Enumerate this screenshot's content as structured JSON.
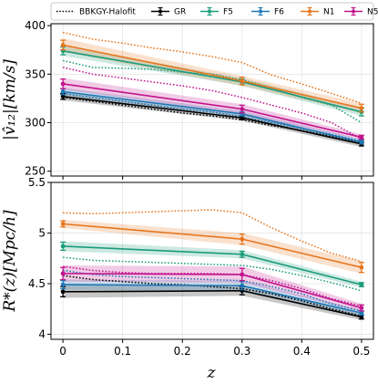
{
  "legend": [
    {
      "key": "bbkgy",
      "label": "BBKGY-Halofit",
      "style": "dotted",
      "color": "#000000"
    },
    {
      "key": "GR",
      "label": "GR",
      "style": "errorbar",
      "color": "#000000"
    },
    {
      "key": "F5",
      "label": "F5",
      "style": "errorbar",
      "color": "#1a9c7a"
    },
    {
      "key": "F6",
      "label": "F6",
      "style": "errorbar",
      "color": "#1f77b4"
    },
    {
      "key": "N1",
      "label": "N1",
      "style": "errorbar",
      "color": "#e6761e"
    },
    {
      "key": "N5",
      "label": "N5",
      "style": "errorbar",
      "color": "#c0148c"
    }
  ],
  "xlabel": "z",
  "chart_data": [
    {
      "type": "line",
      "panel": "top",
      "ylabel": "|v̂₁₂|[km/s]",
      "xlim": [
        -0.02,
        0.52
      ],
      "ylim": [
        245,
        402
      ],
      "x_ticks": [
        "0",
        "0.1",
        "0.2",
        "0.3",
        "0.4",
        "0.5"
      ],
      "y_ticks": [
        250,
        300,
        350,
        400
      ],
      "grid": true,
      "series": [
        {
          "name": "GR",
          "color": "#000000",
          "x": [
            0,
            0.3,
            0.5
          ],
          "y": [
            327,
            305,
            278
          ],
          "err": [
            3,
            2,
            2
          ],
          "band": [
            4,
            3,
            3
          ]
        },
        {
          "name": "F5",
          "color": "#1a9c7a",
          "x": [
            0,
            0.3,
            0.5
          ],
          "y": [
            374,
            342,
            311
          ],
          "err": [
            4,
            3,
            4
          ],
          "band": [
            5,
            4,
            4
          ]
        },
        {
          "name": "F6",
          "color": "#1f77b4",
          "x": [
            0,
            0.3,
            0.5
          ],
          "y": [
            332,
            309,
            280
          ],
          "err": [
            3,
            2,
            2
          ],
          "band": [
            4,
            3,
            3
          ]
        },
        {
          "name": "N1",
          "color": "#e6761e",
          "x": [
            0,
            0.3,
            0.5
          ],
          "y": [
            380,
            343,
            315
          ],
          "err": [
            5,
            4,
            4
          ],
          "band": [
            7,
            5,
            5
          ]
        },
        {
          "name": "N5",
          "color": "#c0148c",
          "x": [
            0,
            0.3,
            0.5
          ],
          "y": [
            340,
            314,
            285
          ],
          "err": [
            5,
            4,
            2
          ],
          "band": [
            6,
            5,
            3
          ]
        }
      ],
      "halofit": [
        {
          "name": "GR",
          "color": "#000000",
          "x": [
            0,
            0.05,
            0.1,
            0.15,
            0.2,
            0.25,
            0.3,
            0.35,
            0.4,
            0.45,
            0.5
          ],
          "y": [
            326,
            322,
            318,
            314,
            310,
            307,
            303,
            297,
            292,
            286,
            279
          ]
        },
        {
          "name": "F5",
          "color": "#1a9c7a",
          "x": [
            0,
            0.05,
            0.1,
            0.15,
            0.2,
            0.25,
            0.3,
            0.35,
            0.4,
            0.45,
            0.5
          ],
          "y": [
            364,
            357,
            356,
            355,
            352,
            350,
            344,
            336,
            326,
            318,
            300
          ]
        },
        {
          "name": "F6",
          "color": "#1f77b4",
          "x": [
            0,
            0.05,
            0.1,
            0.15,
            0.2,
            0.25,
            0.3,
            0.35,
            0.4,
            0.45,
            0.5
          ],
          "y": [
            330,
            326,
            322,
            318,
            314,
            311,
            306,
            300,
            294,
            288,
            281
          ]
        },
        {
          "name": "N1",
          "color": "#e6761e",
          "x": [
            0,
            0.05,
            0.1,
            0.15,
            0.2,
            0.25,
            0.3,
            0.35,
            0.4,
            0.45,
            0.5
          ],
          "y": [
            393,
            386,
            382,
            377,
            373,
            368,
            362,
            349,
            340,
            330,
            320
          ]
        },
        {
          "name": "N5",
          "color": "#c0148c",
          "x": [
            0,
            0.05,
            0.1,
            0.15,
            0.2,
            0.25,
            0.3,
            0.35,
            0.4,
            0.45,
            0.5
          ],
          "y": [
            357,
            350,
            346,
            342,
            338,
            333,
            326,
            318,
            310,
            300,
            283
          ]
        }
      ]
    },
    {
      "type": "line",
      "panel": "bottom",
      "ylabel": "R*(z)[Mpc/h]",
      "xlim": [
        -0.02,
        0.52
      ],
      "ylim": [
        3.95,
        5.5
      ],
      "x_ticks": [
        "0",
        "0.1",
        "0.2",
        "0.3",
        "0.4",
        "0.5"
      ],
      "y_ticks": [
        "4",
        "4.5",
        "5",
        "5.5"
      ],
      "grid": true,
      "series": [
        {
          "name": "GR",
          "color": "#000000",
          "x": [
            0,
            0.3,
            0.5
          ],
          "y": [
            4.42,
            4.43,
            4.17
          ],
          "err": [
            0.05,
            0.04,
            0.02
          ],
          "band": [
            0.06,
            0.05,
            0.03
          ]
        },
        {
          "name": "F5",
          "color": "#1a9c7a",
          "x": [
            0,
            0.3,
            0.5
          ],
          "y": [
            4.87,
            4.79,
            4.49
          ],
          "err": [
            0.04,
            0.03,
            0.02
          ],
          "band": [
            0.05,
            0.04,
            0.03
          ]
        },
        {
          "name": "F6",
          "color": "#1f77b4",
          "x": [
            0,
            0.3,
            0.5
          ],
          "y": [
            4.49,
            4.48,
            4.21
          ],
          "err": [
            0.04,
            0.04,
            0.02
          ],
          "band": [
            0.05,
            0.05,
            0.03
          ]
        },
        {
          "name": "N1",
          "color": "#e6761e",
          "x": [
            0,
            0.3,
            0.5
          ],
          "y": [
            5.09,
            4.94,
            4.66
          ],
          "err": [
            0.03,
            0.05,
            0.05
          ],
          "band": [
            0.04,
            0.06,
            0.06
          ]
        },
        {
          "name": "N5",
          "color": "#c0148c",
          "x": [
            0,
            0.3,
            0.5
          ],
          "y": [
            4.6,
            4.59,
            4.26
          ],
          "err": [
            0.06,
            0.06,
            0.03
          ],
          "band": [
            0.08,
            0.08,
            0.04
          ]
        }
      ],
      "halofit": [
        {
          "name": "GR",
          "color": "#000000",
          "x": [
            0,
            0.05,
            0.1,
            0.15,
            0.2,
            0.25,
            0.3,
            0.35,
            0.4,
            0.45,
            0.5
          ],
          "y": [
            4.58,
            4.54,
            4.52,
            4.5,
            4.49,
            4.47,
            4.45,
            4.4,
            4.33,
            4.25,
            4.18
          ]
        },
        {
          "name": "F5",
          "color": "#1a9c7a",
          "x": [
            0,
            0.05,
            0.1,
            0.15,
            0.2,
            0.25,
            0.3,
            0.35,
            0.4,
            0.45,
            0.5
          ],
          "y": [
            4.76,
            4.73,
            4.72,
            4.71,
            4.7,
            4.69,
            4.68,
            4.64,
            4.58,
            4.51,
            4.43
          ]
        },
        {
          "name": "F6",
          "color": "#1f77b4",
          "x": [
            0,
            0.05,
            0.1,
            0.15,
            0.2,
            0.25,
            0.3,
            0.35,
            0.4,
            0.45,
            0.5
          ],
          "y": [
            4.63,
            4.59,
            4.57,
            4.56,
            4.55,
            4.54,
            4.53,
            4.47,
            4.4,
            4.3,
            4.23
          ]
        },
        {
          "name": "N1",
          "color": "#e6761e",
          "x": [
            0,
            0.05,
            0.1,
            0.15,
            0.2,
            0.25,
            0.3,
            0.35,
            0.4,
            0.45,
            0.5
          ],
          "y": [
            5.2,
            5.19,
            5.2,
            5.21,
            5.22,
            5.23,
            5.2,
            5.05,
            4.92,
            4.8,
            4.72
          ]
        },
        {
          "name": "N5",
          "color": "#c0148c",
          "x": [
            0,
            0.05,
            0.1,
            0.15,
            0.2,
            0.25,
            0.3,
            0.35,
            0.4,
            0.45,
            0.5
          ],
          "y": [
            4.67,
            4.63,
            4.61,
            4.6,
            4.6,
            4.6,
            4.59,
            4.53,
            4.45,
            4.35,
            4.28
          ]
        }
      ]
    }
  ]
}
